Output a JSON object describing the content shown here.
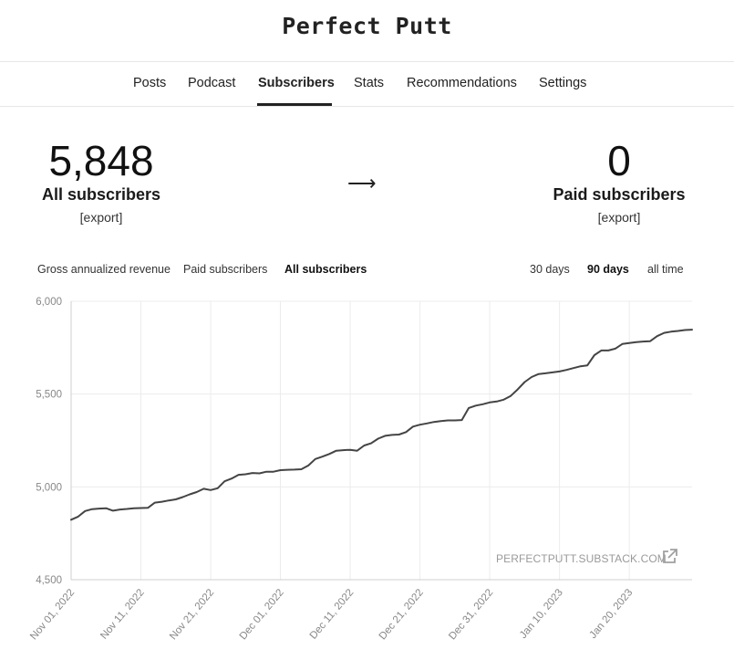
{
  "header": {
    "title": "Perfect Putt"
  },
  "nav": {
    "items": [
      {
        "label": "Posts"
      },
      {
        "label": "Podcast"
      },
      {
        "label": "Subscribers"
      },
      {
        "label": "Stats"
      },
      {
        "label": "Recommendations"
      },
      {
        "label": "Settings"
      }
    ],
    "active": "Subscribers"
  },
  "summary": {
    "all": {
      "value": "5,848",
      "label": "All subscribers",
      "export": "[export]"
    },
    "arrow": "⟶",
    "paid": {
      "value": "0",
      "label": "Paid subscribers",
      "export": "[export]"
    }
  },
  "metric_tabs": {
    "gross": "Gross annualized revenue",
    "paid": "Paid subscribers",
    "all": "All subscribers",
    "active": "All subscribers"
  },
  "range_tabs": {
    "d30": "30 days",
    "d90": "90 days",
    "all": "all time",
    "active": "90 days"
  },
  "watermark": "PERFECTPUTT.SUBSTACK.COM",
  "colors": {
    "line": "#444444",
    "grid": "#ececec",
    "axis_text": "#888888"
  },
  "chart_data": {
    "type": "line",
    "ylim": [
      4500,
      6000
    ],
    "yticks": [
      "6,000",
      "5,500",
      "5,000",
      "4,500"
    ],
    "ytick_values": [
      6000,
      5500,
      5000,
      4500
    ],
    "xticks": [
      "Nov 01, 2022",
      "Nov 11, 2022",
      "Nov 21, 2022",
      "Dec 01, 2022",
      "Dec 11, 2022",
      "Dec 21, 2022",
      "Dec 31, 2022",
      "Jan 10, 2023",
      "Jan 20, 2023"
    ],
    "xlim": [
      "2022-11-01",
      "2023-01-29"
    ],
    "grid": true,
    "series": [
      {
        "x": [
          "2022-11-01",
          "2022-11-02",
          "2022-11-03",
          "2022-11-04",
          "2022-11-05",
          "2022-11-06",
          "2022-11-07",
          "2022-11-08",
          "2022-11-09",
          "2022-11-10",
          "2022-11-11",
          "2022-11-12",
          "2022-11-13",
          "2022-11-14",
          "2022-11-15",
          "2022-11-16",
          "2022-11-17",
          "2022-11-18",
          "2022-11-19",
          "2022-11-20",
          "2022-11-21",
          "2022-11-22",
          "2022-11-23",
          "2022-11-24",
          "2022-11-25",
          "2022-11-26",
          "2022-11-27",
          "2022-11-28",
          "2022-11-29",
          "2022-11-30",
          "2022-12-01",
          "2022-12-02",
          "2022-12-03",
          "2022-12-04",
          "2022-12-05",
          "2022-12-06",
          "2022-12-07",
          "2022-12-08",
          "2022-12-09",
          "2022-12-10",
          "2022-12-11",
          "2022-12-12",
          "2022-12-13",
          "2022-12-14",
          "2022-12-15",
          "2022-12-16",
          "2022-12-17",
          "2022-12-18",
          "2022-12-19",
          "2022-12-20",
          "2022-12-21",
          "2022-12-22",
          "2022-12-23",
          "2022-12-24",
          "2022-12-25",
          "2022-12-26",
          "2022-12-27",
          "2022-12-28",
          "2022-12-29",
          "2022-12-30",
          "2022-12-31",
          "2023-01-01",
          "2023-01-02",
          "2023-01-03",
          "2023-01-04",
          "2023-01-05",
          "2023-01-06",
          "2023-01-07",
          "2023-01-08",
          "2023-01-09",
          "2023-01-10",
          "2023-01-11",
          "2023-01-12",
          "2023-01-13",
          "2023-01-14",
          "2023-01-15",
          "2023-01-16",
          "2023-01-17",
          "2023-01-18",
          "2023-01-19",
          "2023-01-20",
          "2023-01-21",
          "2023-01-22",
          "2023-01-23",
          "2023-01-24",
          "2023-01-25",
          "2023-01-26",
          "2023-01-27",
          "2023-01-28",
          "2023-01-29"
        ],
        "y": [
          4823,
          4840,
          4870,
          4880,
          4883,
          4885,
          4872,
          4878,
          4881,
          4885,
          4886,
          4887,
          4915,
          4920,
          4927,
          4933,
          4945,
          4960,
          4972,
          4990,
          4983,
          4993,
          5030,
          5045,
          5065,
          5068,
          5075,
          5073,
          5082,
          5082,
          5090,
          5092,
          5093,
          5095,
          5115,
          5150,
          5163,
          5177,
          5195,
          5198,
          5200,
          5195,
          5223,
          5235,
          5260,
          5275,
          5280,
          5282,
          5295,
          5325,
          5335,
          5342,
          5350,
          5355,
          5358,
          5358,
          5360,
          5425,
          5438,
          5445,
          5455,
          5460,
          5470,
          5490,
          5525,
          5565,
          5592,
          5608,
          5612,
          5617,
          5622,
          5630,
          5640,
          5650,
          5655,
          5710,
          5735,
          5735,
          5745,
          5770,
          5775,
          5780,
          5783,
          5785,
          5812,
          5830,
          5836,
          5840,
          5845,
          5847
        ]
      }
    ]
  }
}
